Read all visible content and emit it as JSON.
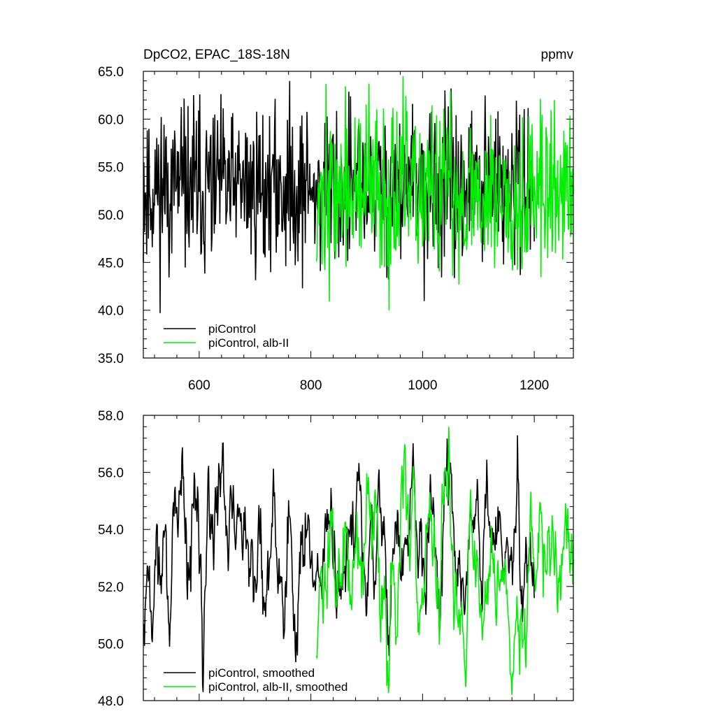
{
  "chart_data": [
    {
      "type": "line",
      "title": "DpCO2, EPAC_18S-18N",
      "units": "ppmv",
      "xlabel": "",
      "ylabel": "",
      "xlim": [
        500,
        1270
      ],
      "ylim": [
        35,
        65
      ],
      "x_ticks": [
        600,
        800,
        1000,
        1200
      ],
      "x_tick_labels": [
        "600",
        "800",
        "1000",
        "1200"
      ],
      "y_ticks": [
        35,
        40,
        45,
        50,
        55,
        60,
        65
      ],
      "y_tick_labels": [
        "35.0",
        "40.0",
        "45.0",
        "50.0",
        "55.0",
        "60.0",
        "65.0"
      ],
      "grid": false,
      "legend": "bottom-left",
      "series": [
        {
          "name": "piControl",
          "color": "#000000",
          "x_start": 500,
          "x_end": 1200,
          "mean": 52.3,
          "amplitude": 3.6,
          "min": 39.7,
          "max": 64.0,
          "seed": 11
        },
        {
          "name": "piControl, alb-II",
          "color": "#00ee00",
          "x_start": 810,
          "x_end": 1270,
          "mean": 52.6,
          "amplitude": 3.9,
          "min": 40.0,
          "max": 64.5,
          "seed": 37
        }
      ]
    },
    {
      "type": "line",
      "title": "",
      "xlabel": "",
      "ylabel": "",
      "xlim": [
        500,
        1270
      ],
      "ylim": [
        48,
        58
      ],
      "x_ticks": [
        600,
        800,
        1000,
        1200
      ],
      "x_tick_labels": [],
      "y_ticks": [
        48,
        50,
        52,
        54,
        56,
        58
      ],
      "y_tick_labels": [
        "48.0",
        "50.0",
        "52.0",
        "54.0",
        "56.0",
        "58.0"
      ],
      "grid": false,
      "legend": "bottom-left",
      "series": [
        {
          "name": "piControl, smoothed",
          "color": "#000000",
          "x_start": 500,
          "x_end": 1200,
          "mean": 52.3,
          "amplitude": 1.6,
          "min": 48.3,
          "max": 57.3,
          "seed": 11
        },
        {
          "name": "piControl, alb-II, smoothed",
          "color": "#00ee00",
          "x_start": 810,
          "x_end": 1270,
          "mean": 52.6,
          "amplitude": 1.8,
          "min": 48.2,
          "max": 57.6,
          "seed": 37
        }
      ]
    }
  ]
}
